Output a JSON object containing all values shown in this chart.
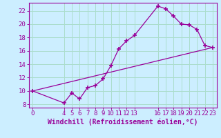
{
  "xlabel": "Windchill (Refroidissement éolien,°C)",
  "background_color": "#cceeff",
  "grid_color": "#aaddcc",
  "line_color": "#990099",
  "curve_x": [
    0,
    4,
    5,
    6,
    7,
    8,
    9,
    10,
    11,
    12,
    13,
    16,
    17,
    18,
    19,
    20,
    21,
    22,
    23
  ],
  "curve_y": [
    10,
    8.2,
    9.7,
    8.8,
    10.5,
    10.8,
    11.8,
    13.8,
    16.3,
    17.5,
    18.3,
    22.7,
    22.3,
    21.2,
    20.0,
    19.9,
    19.2,
    16.8,
    16.5
  ],
  "trend_x": [
    0,
    23
  ],
  "trend_y": [
    10.0,
    16.5
  ],
  "xticks": [
    0,
    4,
    5,
    6,
    7,
    8,
    9,
    10,
    11,
    12,
    13,
    16,
    17,
    18,
    19,
    20,
    21,
    22,
    23
  ],
  "yticks": [
    8,
    10,
    12,
    14,
    16,
    18,
    20,
    22
  ],
  "xlim": [
    -0.5,
    23.5
  ],
  "ylim": [
    7.5,
    23.2
  ],
  "tick_fontsize": 6.5,
  "label_fontsize": 7
}
